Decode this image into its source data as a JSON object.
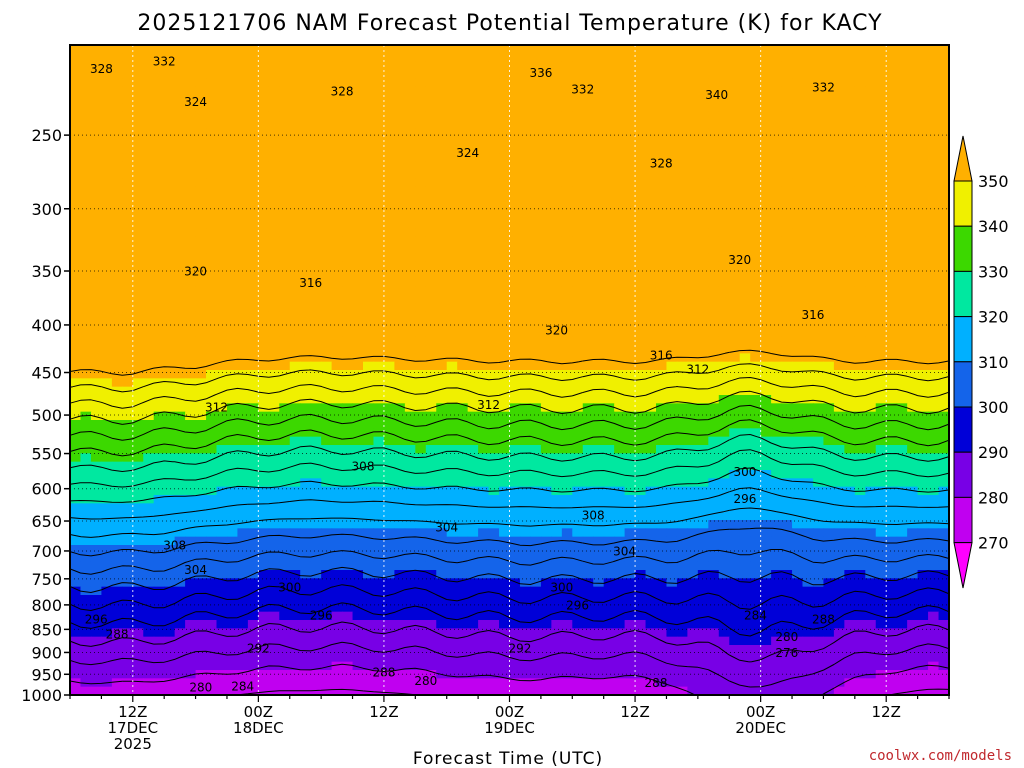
{
  "chart_data": {
    "type": "heatmap",
    "title": "2025121706 NAM Forecast Potential Temperature (K) for KACY",
    "xlabel": "Forecast Time (UTC)",
    "ylabel": "",
    "credit": "coolwx.com/models",
    "y_scale": "log-pressure",
    "ylim": [
      1000,
      200
    ],
    "y_ticks": [
      250,
      300,
      350,
      400,
      450,
      500,
      550,
      600,
      650,
      700,
      750,
      800,
      850,
      900,
      950,
      1000
    ],
    "x_ticks": [
      {
        "hour": 6,
        "lines": [
          "12Z",
          "17DEC",
          "2025"
        ]
      },
      {
        "hour": 18,
        "lines": [
          "00Z",
          "18DEC"
        ]
      },
      {
        "hour": 30,
        "lines": [
          "12Z"
        ]
      },
      {
        "hour": 42,
        "lines": [
          "00Z",
          "19DEC"
        ]
      },
      {
        "hour": 54,
        "lines": [
          "12Z"
        ]
      },
      {
        "hour": 66,
        "lines": [
          "00Z",
          "20DEC"
        ]
      },
      {
        "hour": 78,
        "lines": [
          "12Z"
        ]
      }
    ],
    "xlim_hours": [
      0,
      84
    ],
    "colorbar": {
      "levels": [
        270,
        280,
        290,
        300,
        310,
        320,
        330,
        340,
        350
      ],
      "colors": [
        "#ff00ff",
        "#c000f0",
        "#7800e6",
        "#0000d8",
        "#1464ea",
        "#00b0ff",
        "#00e8a0",
        "#3cd800",
        "#f0f000",
        "#ffb000"
      ],
      "extend": "both"
    },
    "contour_labels": [
      {
        "v": "328",
        "h": 3.0,
        "p": 212
      },
      {
        "v": "332",
        "h": 9.0,
        "p": 208
      },
      {
        "v": "324",
        "h": 12.0,
        "p": 230
      },
      {
        "v": "328",
        "h": 26.0,
        "p": 224
      },
      {
        "v": "336",
        "h": 45.0,
        "p": 214
      },
      {
        "v": "332",
        "h": 49.0,
        "p": 223
      },
      {
        "v": "324",
        "h": 38.0,
        "p": 261
      },
      {
        "v": "340",
        "h": 61.8,
        "p": 226
      },
      {
        "v": "332",
        "h": 72.0,
        "p": 222
      },
      {
        "v": "328",
        "h": 56.5,
        "p": 268
      },
      {
        "v": "320",
        "h": 12.0,
        "p": 350
      },
      {
        "v": "316",
        "h": 23.0,
        "p": 360
      },
      {
        "v": "320",
        "h": 64.0,
        "p": 340
      },
      {
        "v": "316",
        "h": 71.0,
        "p": 390
      },
      {
        "v": "320",
        "h": 46.5,
        "p": 405
      },
      {
        "v": "316",
        "h": 56.5,
        "p": 431
      },
      {
        "v": "312",
        "h": 60.0,
        "p": 446
      },
      {
        "v": "312",
        "h": 14.0,
        "p": 490
      },
      {
        "v": "312",
        "h": 40.0,
        "p": 487
      },
      {
        "v": "308",
        "h": 28.0,
        "p": 567
      },
      {
        "v": "300",
        "h": 64.5,
        "p": 575
      },
      {
        "v": "296",
        "h": 64.5,
        "p": 615
      },
      {
        "v": "308",
        "h": 50.0,
        "p": 640
      },
      {
        "v": "304",
        "h": 36.0,
        "p": 660
      },
      {
        "v": "308",
        "h": 10.0,
        "p": 690
      },
      {
        "v": "304",
        "h": 53.0,
        "p": 700
      },
      {
        "v": "304",
        "h": 12.0,
        "p": 733
      },
      {
        "v": "300",
        "h": 21.0,
        "p": 765
      },
      {
        "v": "300",
        "h": 47.0,
        "p": 765
      },
      {
        "v": "296",
        "h": 48.5,
        "p": 800
      },
      {
        "v": "296",
        "h": 24.0,
        "p": 820
      },
      {
        "v": "284",
        "h": 65.5,
        "p": 820
      },
      {
        "v": "288",
        "h": 72.0,
        "p": 828
      },
      {
        "v": "296",
        "h": 2.5,
        "p": 828
      },
      {
        "v": "288",
        "h": 4.5,
        "p": 860
      },
      {
        "v": "280",
        "h": 68.5,
        "p": 865
      },
      {
        "v": "292",
        "h": 18.0,
        "p": 890
      },
      {
        "v": "292",
        "h": 43.0,
        "p": 890
      },
      {
        "v": "276",
        "h": 68.5,
        "p": 900
      },
      {
        "v": "288",
        "h": 30.0,
        "p": 945
      },
      {
        "v": "280",
        "h": 34.0,
        "p": 965
      },
      {
        "v": "280",
        "h": 12.5,
        "p": 980
      },
      {
        "v": "284",
        "h": 16.5,
        "p": 978
      },
      {
        "v": "288",
        "h": 56.0,
        "p": 970
      }
    ]
  }
}
